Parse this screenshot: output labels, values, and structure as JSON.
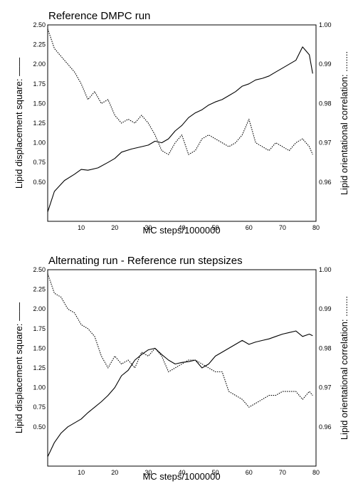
{
  "chart_data": [
    {
      "type": "line",
      "title": "Reference DMPC run",
      "xlabel": "MC steps/1000000",
      "ylabel_left": "Lipid displacement square: ——",
      "ylabel_right": "Lipid orientational correlation: ........",
      "xlim": [
        0,
        80
      ],
      "ylim_left": [
        0,
        2.5
      ],
      "ylim_right": [
        0.95,
        1.0
      ],
      "x_ticks": [
        "10",
        "20",
        "30",
        "40",
        "50",
        "60",
        "70",
        "80"
      ],
      "y_ticks_left": [
        "0.50",
        "0.75",
        "1.00",
        "1.25",
        "1.50",
        "1.75",
        "2.00",
        "2.25",
        "2.50"
      ],
      "y_ticks_right": [
        "0.96",
        "0.97",
        "0.98",
        "0.99",
        "1.00"
      ],
      "series": [
        {
          "axis": "left",
          "style": "solid",
          "points": [
            [
              0,
              0.12
            ],
            [
              2,
              0.38
            ],
            [
              5,
              0.52
            ],
            [
              8,
              0.6
            ],
            [
              10,
              0.66
            ],
            [
              12,
              0.65
            ],
            [
              15,
              0.68
            ],
            [
              18,
              0.75
            ],
            [
              20,
              0.8
            ],
            [
              22,
              0.88
            ],
            [
              25,
              0.92
            ],
            [
              28,
              0.95
            ],
            [
              30,
              0.97
            ],
            [
              32,
              1.02
            ],
            [
              34,
              1.0
            ],
            [
              36,
              1.05
            ],
            [
              38,
              1.15
            ],
            [
              40,
              1.22
            ],
            [
              42,
              1.32
            ],
            [
              44,
              1.38
            ],
            [
              46,
              1.42
            ],
            [
              48,
              1.48
            ],
            [
              50,
              1.52
            ],
            [
              52,
              1.55
            ],
            [
              54,
              1.6
            ],
            [
              56,
              1.65
            ],
            [
              58,
              1.72
            ],
            [
              60,
              1.75
            ],
            [
              62,
              1.8
            ],
            [
              64,
              1.82
            ],
            [
              66,
              1.85
            ],
            [
              68,
              1.9
            ],
            [
              70,
              1.95
            ],
            [
              72,
              2.0
            ],
            [
              74,
              2.05
            ],
            [
              76,
              2.22
            ],
            [
              78,
              2.12
            ],
            [
              79,
              1.88
            ]
          ]
        },
        {
          "axis": "right",
          "style": "dotted",
          "points": [
            [
              0,
              0.999
            ],
            [
              2,
              0.994
            ],
            [
              4,
              0.992
            ],
            [
              6,
              0.99
            ],
            [
              8,
              0.988
            ],
            [
              10,
              0.985
            ],
            [
              12,
              0.981
            ],
            [
              14,
              0.983
            ],
            [
              16,
              0.98
            ],
            [
              18,
              0.981
            ],
            [
              20,
              0.977
            ],
            [
              22,
              0.975
            ],
            [
              24,
              0.976
            ],
            [
              26,
              0.975
            ],
            [
              28,
              0.977
            ],
            [
              30,
              0.975
            ],
            [
              32,
              0.972
            ],
            [
              34,
              0.968
            ],
            [
              36,
              0.967
            ],
            [
              38,
              0.97
            ],
            [
              40,
              0.972
            ],
            [
              42,
              0.967
            ],
            [
              44,
              0.968
            ],
            [
              46,
              0.971
            ],
            [
              48,
              0.972
            ],
            [
              50,
              0.971
            ],
            [
              52,
              0.97
            ],
            [
              54,
              0.969
            ],
            [
              56,
              0.97
            ],
            [
              58,
              0.972
            ],
            [
              60,
              0.976
            ],
            [
              62,
              0.97
            ],
            [
              64,
              0.969
            ],
            [
              66,
              0.968
            ],
            [
              68,
              0.97
            ],
            [
              70,
              0.969
            ],
            [
              72,
              0.968
            ],
            [
              74,
              0.97
            ],
            [
              76,
              0.971
            ],
            [
              78,
              0.969
            ],
            [
              79,
              0.967
            ]
          ]
        }
      ]
    },
    {
      "type": "line",
      "title": "Alternating run - Reference run stepsizes",
      "xlabel": "MC steps/1000000",
      "ylabel_left": "Lipid displacement square: ——",
      "ylabel_right": "Lipid orientational correlation: ........",
      "xlim": [
        0,
        80
      ],
      "ylim_left": [
        0,
        2.5
      ],
      "ylim_right": [
        0.95,
        1.0
      ],
      "x_ticks": [
        "10",
        "20",
        "30",
        "40",
        "50",
        "60",
        "70",
        "80"
      ],
      "y_ticks_left": [
        "0.50",
        "0.75",
        "1.00",
        "1.25",
        "1.50",
        "1.75",
        "2.00",
        "2.25",
        "2.50"
      ],
      "y_ticks_right": [
        "0.96",
        "0.97",
        "0.98",
        "0.99",
        "1.00"
      ],
      "series": [
        {
          "axis": "left",
          "style": "solid",
          "points": [
            [
              0,
              0.12
            ],
            [
              2,
              0.3
            ],
            [
              4,
              0.42
            ],
            [
              6,
              0.5
            ],
            [
              8,
              0.55
            ],
            [
              10,
              0.6
            ],
            [
              12,
              0.68
            ],
            [
              14,
              0.75
            ],
            [
              16,
              0.82
            ],
            [
              18,
              0.9
            ],
            [
              20,
              1.0
            ],
            [
              22,
              1.15
            ],
            [
              24,
              1.22
            ],
            [
              26,
              1.35
            ],
            [
              28,
              1.42
            ],
            [
              30,
              1.48
            ],
            [
              32,
              1.5
            ],
            [
              34,
              1.42
            ],
            [
              36,
              1.35
            ],
            [
              38,
              1.3
            ],
            [
              40,
              1.32
            ],
            [
              42,
              1.33
            ],
            [
              44,
              1.35
            ],
            [
              46,
              1.25
            ],
            [
              48,
              1.3
            ],
            [
              50,
              1.4
            ],
            [
              52,
              1.45
            ],
            [
              54,
              1.5
            ],
            [
              56,
              1.55
            ],
            [
              58,
              1.6
            ],
            [
              60,
              1.55
            ],
            [
              62,
              1.58
            ],
            [
              64,
              1.6
            ],
            [
              66,
              1.62
            ],
            [
              68,
              1.65
            ],
            [
              70,
              1.68
            ],
            [
              72,
              1.7
            ],
            [
              74,
              1.72
            ],
            [
              76,
              1.65
            ],
            [
              78,
              1.68
            ],
            [
              79,
              1.66
            ]
          ]
        },
        {
          "axis": "right",
          "style": "dotted",
          "points": [
            [
              0,
              0.999
            ],
            [
              2,
              0.994
            ],
            [
              4,
              0.993
            ],
            [
              6,
              0.99
            ],
            [
              8,
              0.989
            ],
            [
              10,
              0.986
            ],
            [
              12,
              0.985
            ],
            [
              14,
              0.983
            ],
            [
              16,
              0.978
            ],
            [
              18,
              0.975
            ],
            [
              20,
              0.978
            ],
            [
              22,
              0.976
            ],
            [
              24,
              0.977
            ],
            [
              26,
              0.975
            ],
            [
              28,
              0.979
            ],
            [
              30,
              0.978
            ],
            [
              32,
              0.98
            ],
            [
              34,
              0.978
            ],
            [
              36,
              0.974
            ],
            [
              38,
              0.975
            ],
            [
              40,
              0.976
            ],
            [
              42,
              0.977
            ],
            [
              44,
              0.977
            ],
            [
              46,
              0.976
            ],
            [
              48,
              0.975
            ],
            [
              50,
              0.974
            ],
            [
              52,
              0.974
            ],
            [
              54,
              0.969
            ],
            [
              56,
              0.968
            ],
            [
              58,
              0.967
            ],
            [
              60,
              0.965
            ],
            [
              62,
              0.966
            ],
            [
              64,
              0.967
            ],
            [
              66,
              0.968
            ],
            [
              68,
              0.968
            ],
            [
              70,
              0.969
            ],
            [
              72,
              0.969
            ],
            [
              74,
              0.969
            ],
            [
              76,
              0.967
            ],
            [
              78,
              0.969
            ],
            [
              79,
              0.968
            ]
          ]
        }
      ]
    }
  ]
}
